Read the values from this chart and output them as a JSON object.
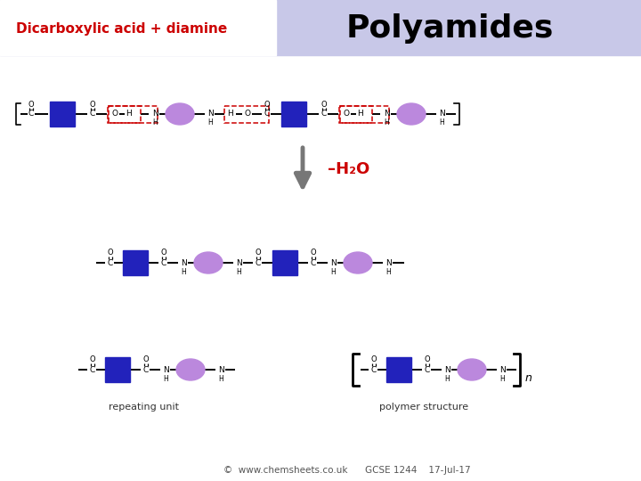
{
  "title": "Polyamides",
  "subtitle": "Dicarboxylic acid + diamine",
  "header_bg": "#c8c8e8",
  "header_title_color": "#000000",
  "subtitle_color": "#cc0000",
  "background": "#ffffff",
  "blue_square_color": "#2222bb",
  "purple_oval_color": "#bb88dd",
  "arrow_color": "#777777",
  "h2o_text": "–H₂O",
  "h2o_color": "#cc0000",
  "bond_color": "#000000",
  "dashed_rect_color": "#cc0000",
  "repeating_label": "repeating unit",
  "polymer_label": "polymer structure",
  "footer": "©  www.chemsheets.co.uk      GCSE 1244    17-Jul-17",
  "footer_color": "#555555"
}
